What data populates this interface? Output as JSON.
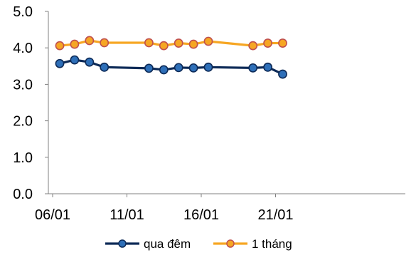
{
  "chart_data": {
    "type": "line",
    "x": [
      "06/01",
      "07/01",
      "08/01",
      "09/01",
      "12/01",
      "13/01",
      "14/01",
      "15/01",
      "16/01",
      "19/01",
      "20/01",
      "21/01"
    ],
    "x_ticks": [
      "06/01",
      "11/01",
      "16/01",
      "21/01"
    ],
    "y_ticks": [
      "0.0",
      "1.0",
      "2.0",
      "3.0",
      "4.0",
      "5.0"
    ],
    "ylim": [
      0,
      5
    ],
    "grid": false,
    "legend_position": "bottom",
    "series": [
      {
        "name": "qua đêm",
        "color": "#0d2a57",
        "marker_fill": "#2e6fb8",
        "values": [
          3.57,
          3.67,
          3.61,
          3.47,
          3.44,
          3.4,
          3.46,
          3.45,
          3.47,
          3.45,
          3.47,
          3.28
        ]
      },
      {
        "name": "1 tháng",
        "color": "#f6a623",
        "marker_fill": "#f6a623",
        "marker_stroke": "#c0504d",
        "values": [
          4.06,
          4.1,
          4.2,
          4.14,
          4.14,
          4.06,
          4.13,
          4.1,
          4.18,
          4.06,
          4.13,
          4.13
        ]
      }
    ]
  }
}
